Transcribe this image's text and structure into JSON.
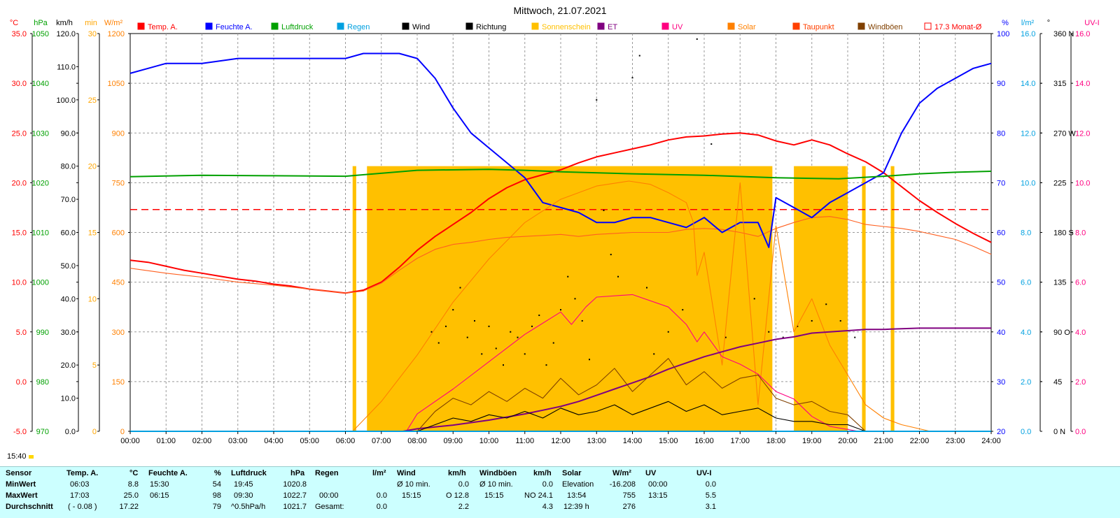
{
  "chart_data": {
    "type": "line",
    "title": "Mittwoch, 21.07.2021",
    "x_ticks": [
      "00:00",
      "01:00",
      "02:00",
      "03:00",
      "04:00",
      "05:00",
      "06:00",
      "07:00",
      "08:00",
      "09:00",
      "10:00",
      "11:00",
      "12:00",
      "13:00",
      "14:00",
      "15:00",
      "16:00",
      "17:00",
      "18:00",
      "19:00",
      "20:00",
      "21:00",
      "22:00",
      "23:00",
      "24:00"
    ],
    "xlim": [
      0,
      24
    ],
    "left_axes": [
      {
        "unit": "°C",
        "color": "#ff0000",
        "min": -5,
        "max": 35,
        "step": 5,
        "decimals": 1
      },
      {
        "unit": "hPa",
        "color": "#00a000",
        "min": 970,
        "max": 1050,
        "step": 10,
        "decimals": 0
      },
      {
        "unit": "km/h",
        "color": "#000000",
        "min": 0,
        "max": 120,
        "step": 10,
        "decimals": 1
      },
      {
        "unit": "min",
        "color": "#ffa500",
        "min": 0,
        "max": 30,
        "step": 5,
        "decimals": 0
      },
      {
        "unit": "W/m²",
        "color": "#ff8000",
        "min": 0,
        "max": 1200,
        "step": 150,
        "decimals": 0
      }
    ],
    "right_axes": [
      {
        "unit": "%",
        "color": "#0000ff",
        "min": 20,
        "max": 100,
        "step": 10,
        "decimals": 0
      },
      {
        "unit": "l/m²",
        "color": "#00a0e0",
        "min": 0,
        "max": 16,
        "step": 2,
        "decimals": 1
      },
      {
        "unit": "°",
        "color": "#000000",
        "min": 0,
        "max": 360,
        "step": 45,
        "decimals": 0,
        "labels": [
          "0 N",
          "45",
          "90 O",
          "135",
          "180 S",
          "225",
          "270 W",
          "315",
          "360 N"
        ]
      },
      {
        "unit": "UV-I",
        "color": "#ff0080",
        "min": 0,
        "max": 16,
        "step": 2,
        "decimals": 1
      }
    ],
    "legend": [
      {
        "name": "Temp. A.",
        "color": "#ff0000"
      },
      {
        "name": "Feuchte A.",
        "color": "#0000ff"
      },
      {
        "name": "Luftdruck",
        "color": "#00a000"
      },
      {
        "name": "Regen",
        "color": "#00a0e0"
      },
      {
        "name": "Wind",
        "color": "#000000"
      },
      {
        "name": "Richtung",
        "color": "#000000"
      },
      {
        "name": "Sonnenschein",
        "color": "#ffc000"
      },
      {
        "name": "ET",
        "color": "#800080"
      },
      {
        "name": "UV",
        "color": "#ff0080"
      },
      {
        "name": "Solar",
        "color": "#ff8000"
      },
      {
        "name": "Taupunkt",
        "color": "#ff4000"
      },
      {
        "name": "Windböen",
        "color": "#804000"
      },
      {
        "name": "17.3 Monat-Ø",
        "color": "#ff0000",
        "hollow": true
      }
    ],
    "month_avg_temp": 17.3,
    "series": [
      {
        "name": "Temp. A.",
        "color": "#ff0000",
        "axis": "°C",
        "x": [
          0,
          0.5,
          1,
          1.5,
          2,
          2.5,
          3,
          3.5,
          4,
          4.5,
          5,
          5.5,
          6,
          6.5,
          7,
          7.5,
          8,
          8.5,
          9,
          9.5,
          10,
          10.5,
          11,
          11.5,
          12,
          12.5,
          13,
          13.5,
          14,
          14.5,
          15,
          15.5,
          16,
          16.5,
          17,
          17.5,
          18,
          18.5,
          19,
          19.5,
          20,
          20.5,
          21,
          21.5,
          22,
          22.5,
          23,
          23.5,
          24
        ],
        "y": [
          12.2,
          12.0,
          11.6,
          11.2,
          10.9,
          10.6,
          10.3,
          10.1,
          9.8,
          9.6,
          9.3,
          9.1,
          8.9,
          9.2,
          10.0,
          11.5,
          13.2,
          14.6,
          15.8,
          17.0,
          18.4,
          19.5,
          20.3,
          20.8,
          21.3,
          22.0,
          22.6,
          23.0,
          23.4,
          23.8,
          24.3,
          24.6,
          24.7,
          24.9,
          25.0,
          24.8,
          24.2,
          23.8,
          24.3,
          23.8,
          22.9,
          22.1,
          21.0,
          19.6,
          18.2,
          17.0,
          15.9,
          14.9,
          14.0
        ]
      },
      {
        "name": "Taupunkt",
        "color": "#ff6020",
        "axis": "°C",
        "x": [
          0,
          1,
          2,
          3,
          4,
          5,
          6,
          6.5,
          7,
          7.5,
          8,
          8.5,
          9,
          9.5,
          10,
          10.5,
          11,
          11.5,
          12,
          12.5,
          13,
          13.5,
          14,
          14.5,
          15,
          15.5,
          16,
          16.5,
          17,
          17.5,
          18,
          18.5,
          19,
          19.5,
          20,
          20.5,
          21,
          21.5,
          22,
          22.5,
          23,
          23.5,
          24
        ],
        "y": [
          11.4,
          10.9,
          10.5,
          10.0,
          9.7,
          9.3,
          8.9,
          9.1,
          9.9,
          11.2,
          12.4,
          13.3,
          13.8,
          14.0,
          14.3,
          14.5,
          14.6,
          14.7,
          14.8,
          14.6,
          14.8,
          14.9,
          15.0,
          15.0,
          15.0,
          15.3,
          15.4,
          15.3,
          15.0,
          14.6,
          15.4,
          16.0,
          16.5,
          16.6,
          16.3,
          15.8,
          15.6,
          15.4,
          15.1,
          14.7,
          14.3,
          13.6,
          12.8
        ]
      },
      {
        "name": "Feuchte A.",
        "color": "#0000ff",
        "axis": "%",
        "x": [
          0,
          0.5,
          1,
          1.5,
          2,
          3,
          4,
          5,
          6,
          6.5,
          7,
          7.5,
          8,
          8.5,
          9,
          9.5,
          10,
          10.5,
          11,
          11.5,
          12,
          12.5,
          13,
          13.5,
          14,
          14.5,
          15,
          15.5,
          16,
          16.5,
          17,
          17.5,
          17.8,
          18,
          18.5,
          19,
          19.5,
          20,
          20.5,
          21,
          21.5,
          22,
          22.5,
          23,
          23.5,
          24
        ],
        "y": [
          92,
          93,
          94,
          94,
          94,
          95,
          95,
          95,
          95,
          96,
          96,
          96,
          95,
          91,
          85,
          80,
          77,
          74,
          71,
          66,
          65,
          64,
          62,
          62,
          63,
          63,
          62,
          61,
          63,
          60,
          62,
          62,
          57,
          67,
          65,
          63,
          66,
          68,
          70,
          72,
          80,
          86,
          89,
          91,
          93,
          94
        ]
      },
      {
        "name": "Luftdruck",
        "color": "#00a000",
        "axis": "hPa",
        "x": [
          0,
          2,
          4,
          6,
          8,
          10,
          11,
          12,
          14,
          16,
          18,
          19.75,
          21,
          22,
          23,
          24
        ],
        "y": [
          1021.2,
          1021.5,
          1021.4,
          1021.3,
          1022.5,
          1022.7,
          1022.5,
          1022.2,
          1021.8,
          1021.5,
          1021.0,
          1020.8,
          1021.3,
          1021.8,
          1022.1,
          1022.3
        ]
      },
      {
        "name": "Solar",
        "color": "#ff8000",
        "axis": "W/m²",
        "x": [
          6.2,
          7,
          8,
          9,
          10,
          11,
          12,
          13,
          13.9,
          14.5,
          15,
          15.5,
          15.7,
          15.8,
          16,
          16.5,
          17,
          17.5,
          18,
          18.5,
          19,
          19.5,
          20,
          20.5,
          21,
          21.5,
          22.3
        ],
        "y": [
          0,
          90,
          230,
          390,
          520,
          630,
          700,
          740,
          755,
          745,
          720,
          690,
          630,
          470,
          540,
          200,
          750,
          80,
          620,
          300,
          400,
          260,
          170,
          80,
          40,
          20,
          0
        ]
      },
      {
        "name": "UV",
        "color": "#ff0080",
        "axis": "UV-I",
        "x": [
          7.7,
          8,
          9,
          10,
          11,
          12,
          12.3,
          12.7,
          13,
          14,
          15,
          15.5,
          15.8,
          16,
          16.5,
          17,
          17.5,
          18,
          18.5,
          19,
          19.5,
          20.3
        ],
        "y": [
          0,
          0.7,
          1.7,
          2.8,
          3.9,
          4.8,
          4.3,
          5.0,
          5.4,
          5.5,
          5.0,
          4.3,
          3.6,
          4.0,
          3.0,
          2.7,
          2.3,
          1.6,
          1.3,
          0.6,
          0.2,
          0
        ]
      },
      {
        "name": "ET",
        "color": "#800080",
        "axis": "l/m²",
        "x": [
          7.6,
          8,
          9,
          10,
          11,
          11.5,
          12,
          12.5,
          13,
          13.5,
          14,
          14.5,
          15,
          15.5,
          16,
          16.5,
          17,
          17.5,
          18,
          18.5,
          19,
          19.5,
          20,
          20.5,
          21,
          22,
          23,
          24
        ],
        "y": [
          0,
          0.1,
          0.25,
          0.45,
          0.7,
          0.85,
          1.0,
          1.2,
          1.45,
          1.7,
          1.95,
          2.2,
          2.5,
          2.75,
          3.0,
          3.2,
          3.4,
          3.55,
          3.7,
          3.8,
          3.95,
          4.0,
          4.05,
          4.1,
          4.1,
          4.15,
          4.15,
          4.15
        ]
      },
      {
        "name": "Wind",
        "color": "#000000",
        "axis": "km/h",
        "x": [
          8,
          8.5,
          9,
          9.5,
          10,
          10.5,
          11,
          11.5,
          12,
          12.5,
          13,
          13.5,
          14,
          14.5,
          15,
          15.5,
          16,
          16.5,
          17,
          17.5,
          18,
          18.5,
          19,
          19.5,
          20,
          20.5
        ],
        "y": [
          0,
          2,
          4,
          3,
          5,
          4,
          6,
          4,
          7,
          5,
          6,
          8,
          5,
          7,
          9,
          6,
          8,
          5,
          6,
          7,
          4,
          3,
          3,
          2,
          2,
          0
        ]
      },
      {
        "name": "Windböen",
        "color": "#804000",
        "axis": "km/h",
        "x": [
          8,
          8.5,
          9,
          9.5,
          10,
          10.5,
          11,
          11.5,
          12,
          12.5,
          13,
          13.5,
          14,
          14.5,
          15,
          15.5,
          16,
          16.5,
          17,
          17.5,
          18,
          18.5,
          19,
          19.5,
          20,
          20.5
        ],
        "y": [
          0,
          6,
          10,
          8,
          12,
          9,
          13,
          10,
          16,
          11,
          14,
          19,
          12,
          17,
          22,
          14,
          18,
          13,
          16,
          17,
          10,
          8,
          9,
          6,
          5,
          0
        ]
      },
      {
        "name": "Regen",
        "color": "#00a0e0",
        "axis": "l/m²",
        "x": [
          0,
          24
        ],
        "y": [
          0,
          0
        ]
      }
    ],
    "sunshine_bars": [
      [
        6.2,
        6.3
      ],
      [
        6.6,
        17.9
      ],
      [
        18.5,
        20.0
      ],
      [
        20.4,
        20.5
      ],
      [
        21.2,
        21.3
      ]
    ],
    "direction_points": [
      [
        8.4,
        90
      ],
      [
        8.6,
        80
      ],
      [
        8.8,
        95
      ],
      [
        9.0,
        110
      ],
      [
        9.2,
        130
      ],
      [
        9.4,
        85
      ],
      [
        9.6,
        100
      ],
      [
        9.8,
        70
      ],
      [
        10.0,
        95
      ],
      [
        10.2,
        75
      ],
      [
        10.4,
        60
      ],
      [
        10.6,
        90
      ],
      [
        10.8,
        85
      ],
      [
        11.0,
        70
      ],
      [
        11.2,
        95
      ],
      [
        11.4,
        105
      ],
      [
        11.6,
        60
      ],
      [
        11.8,
        80
      ],
      [
        12.0,
        110
      ],
      [
        12.2,
        140
      ],
      [
        12.4,
        120
      ],
      [
        12.6,
        100
      ],
      [
        12.8,
        65
      ],
      [
        13.0,
        300
      ],
      [
        13.2,
        200
      ],
      [
        13.4,
        160
      ],
      [
        13.6,
        140
      ],
      [
        14.0,
        320
      ],
      [
        14.2,
        340
      ],
      [
        14.4,
        130
      ],
      [
        14.6,
        70
      ],
      [
        15.0,
        90
      ],
      [
        15.4,
        110
      ],
      [
        15.8,
        355
      ],
      [
        16.2,
        260
      ],
      [
        16.6,
        85
      ],
      [
        17.0,
        270
      ],
      [
        17.4,
        120
      ],
      [
        17.8,
        90
      ],
      [
        18.2,
        85
      ],
      [
        18.6,
        95
      ],
      [
        19.0,
        100
      ],
      [
        19.4,
        115
      ],
      [
        19.8,
        100
      ],
      [
        20.2,
        85
      ]
    ]
  },
  "footer": {
    "time": "15:40"
  },
  "stats": {
    "row_labels": [
      "Sensor",
      "MinWert",
      "MaxWert",
      "Durchschnitt"
    ],
    "temp": {
      "head": "Temp. A.",
      "unit": "°C",
      "min_time": "06:03",
      "min": "8.8",
      "max_time": "17:03",
      "max": "25.0",
      "avg_note": "( - 0.08 )",
      "avg": "17.22"
    },
    "hum": {
      "head": "Feuchte A.",
      "unit": "%",
      "min_time": "15:30",
      "min": "54",
      "max_time": "06:15",
      "max": "98",
      "avg": "79"
    },
    "press": {
      "head": "Luftdruck",
      "unit": "hPa",
      "min_time": "19:45",
      "min": "1020.8",
      "max_time": "09:30",
      "max": "1022.7",
      "avg_note": "^0.5hPa/h",
      "avg": "1021.7"
    },
    "rain": {
      "head": "Regen",
      "unit": "l/m²",
      "max_time": "00:00",
      "max": "0.0",
      "avg_label": "Gesamt:",
      "avg": "0.0"
    },
    "wind": {
      "head": "Wind",
      "unit": "km/h",
      "min_label": "Ø 10 min.",
      "min": "0.0",
      "max_time": "15:15",
      "max": "O 12.8",
      "avg": "2.2"
    },
    "gust": {
      "head": "Windböen",
      "unit": "km/h",
      "min_label": "Ø 10 min.",
      "min": "0.0",
      "max_time": "15:15",
      "max": "NO 24.1",
      "avg": "4.3"
    },
    "solar": {
      "head": "Solar",
      "unit": "W/m²",
      "min_label": "Elevation",
      "min": "-16.208",
      "max_time": "13:54",
      "max": "755",
      "avg_note": "12:39 h",
      "avg": "276"
    },
    "uv": {
      "head": "UV",
      "unit": "UV-I",
      "min_time": "00:00",
      "min": "0.0",
      "max_time": "13:15",
      "max": "5.5",
      "avg": "3.1"
    }
  }
}
